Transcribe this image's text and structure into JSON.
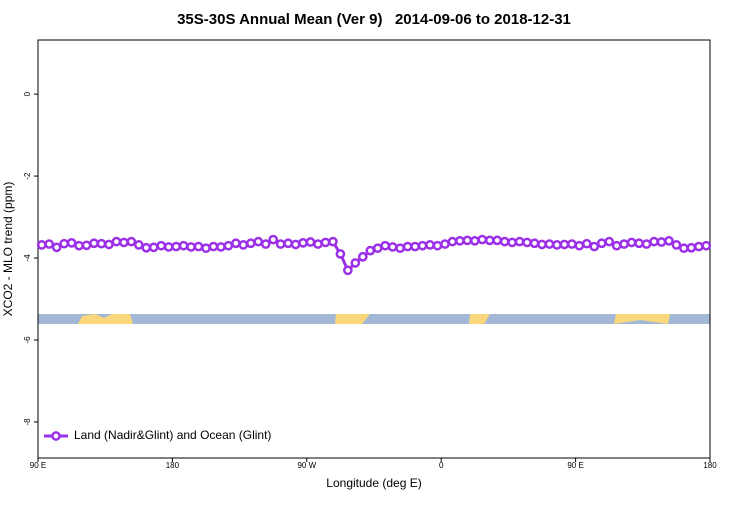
{
  "chart_data": {
    "type": "line",
    "title": "35S-30S Annual Mean (Ver 9)   2014-09-06 to 2018-12-31",
    "x_label": "Longitude (deg E)",
    "y_label": "XCO2 - MLO trend (ppm)",
    "x": [
      92.5,
      97.5,
      102.5,
      107.5,
      112.5,
      117.5,
      122.5,
      127.5,
      132.5,
      137.5,
      142.5,
      147.5,
      152.5,
      157.5,
      162.5,
      167.5,
      172.5,
      177.5,
      182.5,
      187.5,
      192.5,
      197.5,
      202.5,
      207.5,
      212.5,
      217.5,
      222.5,
      227.5,
      232.5,
      237.5,
      242.5,
      247.5,
      252.5,
      257.5,
      262.5,
      267.5,
      272.5,
      277.5,
      282.5,
      287.5,
      292.5,
      297.5,
      302.5,
      307.5,
      312.5,
      317.5,
      322.5,
      327.5,
      332.5,
      337.5,
      342.5,
      347.5,
      352.5,
      357.5,
      362.5,
      367.5,
      372.5,
      377.5,
      382.5,
      387.5,
      392.5,
      397.5,
      402.5,
      407.5,
      412.5,
      417.5,
      422.5,
      427.5,
      432.5,
      437.5,
      442.5,
      447.5,
      452.5,
      457.5,
      462.5,
      467.5,
      472.5,
      477.5,
      482.5,
      487.5,
      492.5,
      497.5,
      502.5,
      507.5,
      512.5,
      517.5,
      522.5,
      527.5,
      532.5,
      537.5
    ],
    "series": [
      {
        "name": "Land (Nadir&Glint) and Ocean (Glint)",
        "color": "#9b30e8",
        "values": [
          -3.68,
          -3.66,
          -3.74,
          -3.65,
          -3.63,
          -3.7,
          -3.69,
          -3.64,
          -3.65,
          -3.67,
          -3.6,
          -3.62,
          -3.6,
          -3.68,
          -3.75,
          -3.74,
          -3.7,
          -3.73,
          -3.72,
          -3.7,
          -3.73,
          -3.72,
          -3.76,
          -3.72,
          -3.73,
          -3.7,
          -3.64,
          -3.68,
          -3.64,
          -3.6,
          -3.66,
          -3.55,
          -3.66,
          -3.64,
          -3.67,
          -3.63,
          -3.61,
          -3.66,
          -3.62,
          -3.6,
          -3.9,
          -4.3,
          -4.12,
          -3.97,
          -3.82,
          -3.76,
          -3.7,
          -3.73,
          -3.76,
          -3.72,
          -3.72,
          -3.7,
          -3.68,
          -3.7,
          -3.66,
          -3.6,
          -3.58,
          -3.57,
          -3.58,
          -3.55,
          -3.57,
          -3.57,
          -3.6,
          -3.62,
          -3.6,
          -3.62,
          -3.64,
          -3.67,
          -3.66,
          -3.68,
          -3.67,
          -3.66,
          -3.7,
          -3.65,
          -3.72,
          -3.64,
          -3.6,
          -3.7,
          -3.66,
          -3.62,
          -3.64,
          -3.66,
          -3.6,
          -3.61,
          -3.58,
          -3.68,
          -3.76,
          -3.75,
          -3.72,
          -3.7
        ]
      }
    ],
    "xlim": [
      90,
      540
    ],
    "xticks": [
      {
        "value": 90,
        "label": "90 E"
      },
      180,
      {
        "value": 270,
        "label": "90 W"
      },
      {
        "value": 360,
        "label": "0"
      },
      {
        "value": 450,
        "label": "90 E"
      },
      {
        "value": 540,
        "label": "180"
      }
    ],
    "ylim": [
      -8.88,
      1.32
    ],
    "yticks": [
      0,
      -2,
      -4,
      -6,
      -8
    ],
    "legend": "bottom-left"
  }
}
